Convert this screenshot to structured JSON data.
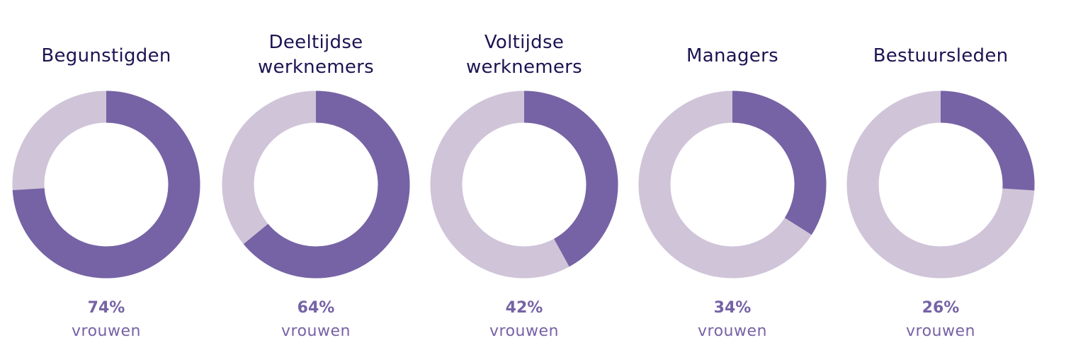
{
  "chart_data": {
    "type": "pie",
    "variant": "donut",
    "unit_label": "vrouwen",
    "colors": {
      "filled": "#7663a5",
      "rest": "#d0c4d9"
    },
    "charts": [
      {
        "title_lines": [
          "Begunstigden"
        ],
        "value": 74,
        "label": "74%"
      },
      {
        "title_lines": [
          "Deeltijdse",
          "werknemers"
        ],
        "value": 64,
        "label": "64%"
      },
      {
        "title_lines": [
          "Voltijdse",
          "werknemers"
        ],
        "value": 42,
        "label": "42%"
      },
      {
        "title_lines": [
          "Managers"
        ],
        "value": 34,
        "label": "34%"
      },
      {
        "title_lines": [
          "Bestuursleden"
        ],
        "value": 26,
        "label": "26%"
      }
    ]
  }
}
